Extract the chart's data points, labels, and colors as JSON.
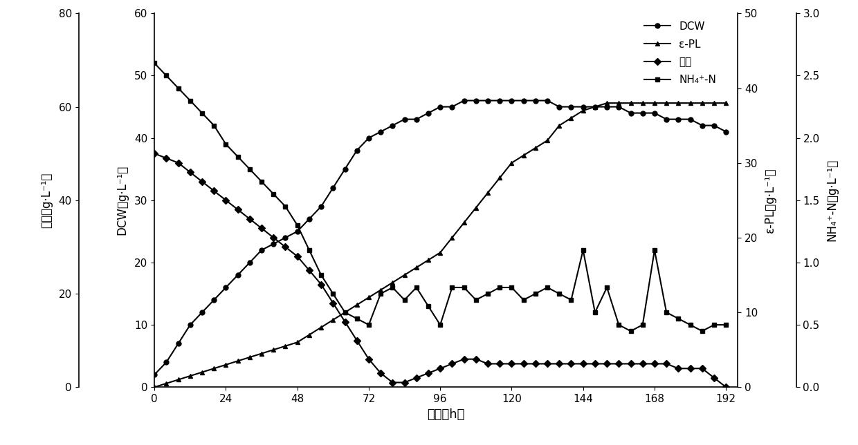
{
  "time": [
    0,
    4,
    8,
    12,
    16,
    20,
    24,
    28,
    32,
    36,
    40,
    44,
    48,
    52,
    56,
    60,
    64,
    68,
    72,
    76,
    80,
    84,
    88,
    92,
    96,
    100,
    104,
    108,
    112,
    116,
    120,
    124,
    128,
    132,
    136,
    140,
    144,
    148,
    152,
    156,
    160,
    164,
    168,
    172,
    176,
    180,
    184,
    188,
    192
  ],
  "DCW": [
    2,
    4,
    7,
    10,
    12,
    14,
    16,
    18,
    20,
    22,
    23,
    24,
    25,
    27,
    29,
    32,
    35,
    38,
    40,
    41,
    42,
    43,
    43,
    44,
    45,
    45,
    46,
    46,
    46,
    46,
    46,
    46,
    46,
    46,
    45,
    45,
    45,
    45,
    45,
    45,
    44,
    44,
    44,
    43,
    43,
    43,
    42,
    42,
    41
  ],
  "ePL": [
    0,
    0.5,
    1,
    1.5,
    2,
    2.5,
    3,
    3.5,
    4,
    4.5,
    5,
    5.5,
    6,
    7,
    8,
    9,
    10,
    11,
    12,
    13,
    14,
    15,
    16,
    17,
    18,
    20,
    22,
    24,
    26,
    28,
    30,
    31,
    32,
    33,
    35,
    36,
    37,
    37.5,
    38,
    38,
    38,
    38,
    38,
    38,
    38,
    38,
    38,
    38,
    38
  ],
  "glycerol": [
    50,
    49,
    48,
    46,
    44,
    42,
    40,
    38,
    36,
    34,
    32,
    30,
    28,
    25,
    22,
    18,
    14,
    10,
    6,
    3,
    1,
    1,
    2,
    3,
    4,
    5,
    6,
    6,
    5,
    5,
    5,
    5,
    5,
    5,
    5,
    5,
    5,
    5,
    5,
    5,
    5,
    5,
    5,
    5,
    4,
    4,
    4,
    2,
    0
  ],
  "NH4N": [
    2.6,
    2.5,
    2.4,
    2.3,
    2.2,
    2.1,
    1.95,
    1.85,
    1.75,
    1.65,
    1.55,
    1.45,
    1.3,
    1.1,
    0.9,
    0.75,
    0.6,
    0.55,
    0.5,
    0.75,
    0.8,
    0.7,
    0.8,
    0.65,
    0.5,
    0.8,
    0.8,
    0.7,
    0.75,
    0.8,
    0.8,
    0.7,
    0.75,
    0.8,
    0.75,
    0.7,
    1.1,
    0.6,
    0.8,
    0.5,
    0.45,
    0.5,
    1.1,
    0.6,
    0.55,
    0.5,
    0.45,
    0.5,
    0.5
  ],
  "xlabel": "时间（h）",
  "ylabel_glycerol": "甸油（g·L⁻¹）",
  "ylabel_DCW": "DCW（g·L⁻¹）",
  "ylabel_ePL": "ε-PL（g·L⁻¹）",
  "ylabel_NH4N": "NH₄⁺-N（g·L⁻¹）",
  "legend_DCW": "DCW",
  "legend_ePL": "ε-PL",
  "legend_glycerol": "甸油",
  "legend_NH4N": "NH₄⁺-N",
  "xticks": [
    0,
    24,
    48,
    72,
    96,
    120,
    144,
    168,
    192
  ],
  "xlim": [
    0,
    196
  ],
  "DCW_ylim": [
    0,
    60
  ],
  "DCW_yticks": [
    0,
    10,
    20,
    30,
    40,
    50,
    60
  ],
  "glycerol_ylim": [
    0,
    80
  ],
  "glycerol_yticks": [
    0,
    20,
    40,
    60,
    80
  ],
  "ePL_ylim": [
    0,
    50
  ],
  "ePL_yticks": [
    0,
    10,
    20,
    30,
    40,
    50
  ],
  "NH4N_ylim": [
    0,
    3.0
  ],
  "NH4N_yticks": [
    0.0,
    0.5,
    1.0,
    1.5,
    2.0,
    2.5,
    3.0
  ]
}
